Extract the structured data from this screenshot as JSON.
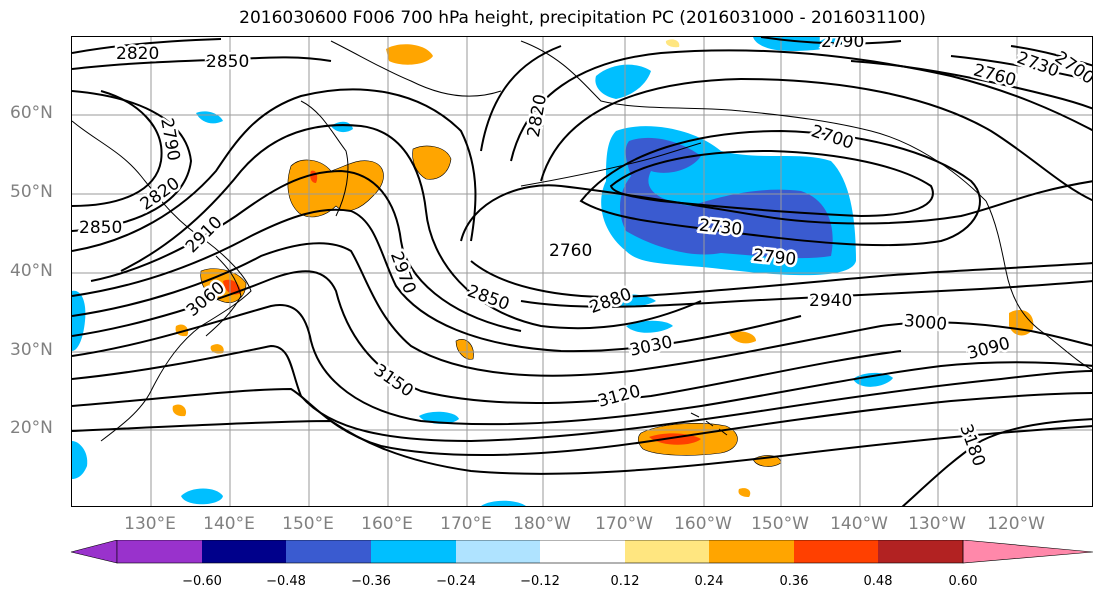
{
  "title": "2016030600 F006 700 hPa height, precipitation PC (2016031000 - 2016031100)",
  "lat_labels": [
    "60°N",
    "50°N",
    "40°N",
    "30°N",
    "20°N"
  ],
  "lon_labels": [
    "130°E",
    "140°E",
    "150°E",
    "160°E",
    "170°E",
    "180°W",
    "170°W",
    "160°W",
    "150°W",
    "140°W",
    "130°W",
    "120°W"
  ],
  "contour_labels": [
    "2820",
    "2850",
    "2790",
    "2820",
    "2850",
    "2910",
    "3060",
    "2820",
    "2970",
    "2850",
    "2760",
    "2880",
    "3030",
    "3150",
    "3120",
    "2700",
    "2730",
    "2790",
    "2940",
    "3000",
    "3090",
    "2760",
    "2730",
    "2700",
    "3180",
    "2790"
  ],
  "colorbar": {
    "ticks": [
      "−0.60",
      "−0.48",
      "−0.36",
      "−0.24",
      "−0.12",
      "0.12",
      "0.24",
      "0.36",
      "0.48",
      "0.60"
    ],
    "colors": [
      "#9932CC",
      "#00008B",
      "#3A5BD0",
      "#00BFFF",
      "#AFE3FF",
      "#FFFFFF",
      "#FFE680",
      "#FFA500",
      "#FF4000",
      "#B22222",
      "#FF88AA"
    ]
  }
}
